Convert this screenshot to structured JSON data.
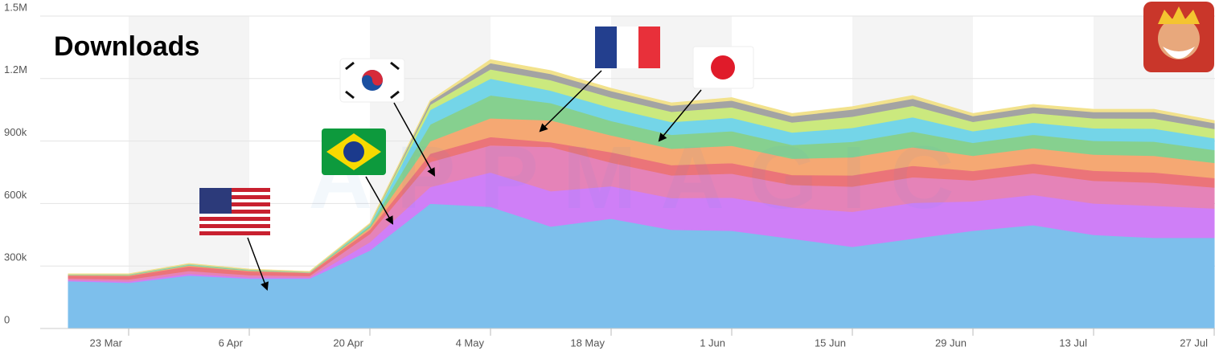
{
  "chart_data": {
    "type": "stacked_area",
    "title": "Downloads",
    "watermark": "APPMAGIC",
    "categories": [
      null,
      "23 Mar",
      null,
      "6 Apr",
      null,
      "20 Apr",
      null,
      "4 May",
      null,
      "18 May",
      null,
      "1 Jun",
      null,
      "15 Jun",
      null,
      "29 Jun",
      null,
      "13 Jul",
      null,
      "27 Jul"
    ],
    "ylim": [
      0,
      1500000
    ],
    "yticks": [
      0,
      {
        "value": 300000,
        "label": "300k"
      },
      {
        "value": 600000,
        "label": "600k"
      },
      {
        "value": 900000,
        "label": "900k"
      },
      {
        "value": 1200000,
        "label": "1.2M"
      },
      {
        "value": 1500000,
        "label": "1.5M"
      }
    ],
    "grid": true,
    "series": [
      {
        "color": "#7dbfec",
        "values": [
          228000,
          220000,
          255000,
          240000,
          240000,
          375000,
          600000,
          585000,
          490000,
          528000,
          475000,
          470000,
          432000,
          393000,
          432000,
          470000,
          497000,
          450000,
          436000,
          436000
        ]
      },
      {
        "color": "#cf7ff7",
        "values": [
          5000,
          6000,
          8000,
          6000,
          5000,
          40000,
          80000,
          165000,
          170000,
          156000,
          152000,
          159000,
          150000,
          168000,
          172000,
          141000,
          145000,
          151000,
          154000,
          141000
        ]
      },
      {
        "color": "#e583b8",
        "values": [
          8000,
          10000,
          14000,
          11000,
          8000,
          40000,
          120000,
          130000,
          212000,
          113000,
          109000,
          115000,
          108000,
          121000,
          123000,
          101000,
          104000,
          109000,
          111000,
          101000
        ]
      },
      {
        "color": "#eb7479",
        "values": [
          14000,
          17000,
          22000,
          18000,
          14000,
          20000,
          40000,
          40000,
          23000,
          50000,
          49000,
          51000,
          48000,
          54000,
          55000,
          45000,
          46000,
          48000,
          49000,
          45000
        ]
      },
      {
        "color": "#f5a873",
        "values": [
          2000,
          3000,
          4000,
          3000,
          2000,
          10000,
          60000,
          90000,
          105000,
          81000,
          79000,
          83000,
          78000,
          87000,
          89000,
          73000,
          75000,
          78000,
          80000,
          73000
        ]
      },
      {
        "color": "#86d08f",
        "values": [
          1000,
          2000,
          3000,
          3000,
          1000,
          8000,
          80000,
          110000,
          83000,
          69000,
          67000,
          70000,
          66000,
          74000,
          75000,
          62000,
          64000,
          66000,
          68000,
          62000
        ]
      },
      {
        "color": "#74d5e8",
        "values": [
          1000,
          1000,
          2000,
          1000,
          1000,
          5000,
          70000,
          80000,
          60000,
          63000,
          61000,
          64000,
          60000,
          67000,
          69000,
          56000,
          58000,
          60000,
          62000,
          56000
        ]
      },
      {
        "color": "#cbe97e",
        "values": [
          1000,
          1000,
          2000,
          1000,
          1000,
          3000,
          25000,
          45000,
          50000,
          50000,
          49000,
          51000,
          48000,
          54000,
          55000,
          45000,
          46000,
          48000,
          49000,
          45000
        ]
      },
      {
        "color": "#a3a3a3",
        "values": [
          1000,
          1000,
          1000,
          1000,
          1000,
          2000,
          15000,
          30000,
          30000,
          31000,
          30000,
          32000,
          30000,
          34000,
          34000,
          28000,
          29000,
          30000,
          31000,
          28000
        ]
      },
      {
        "color": "#f2e28c",
        "values": [
          1000,
          1000,
          1000,
          1000,
          1000,
          2000,
          5000,
          15000,
          15000,
          12000,
          12000,
          13000,
          12000,
          13000,
          14000,
          11000,
          12000,
          12000,
          12000,
          11000
        ]
      }
    ]
  }
}
